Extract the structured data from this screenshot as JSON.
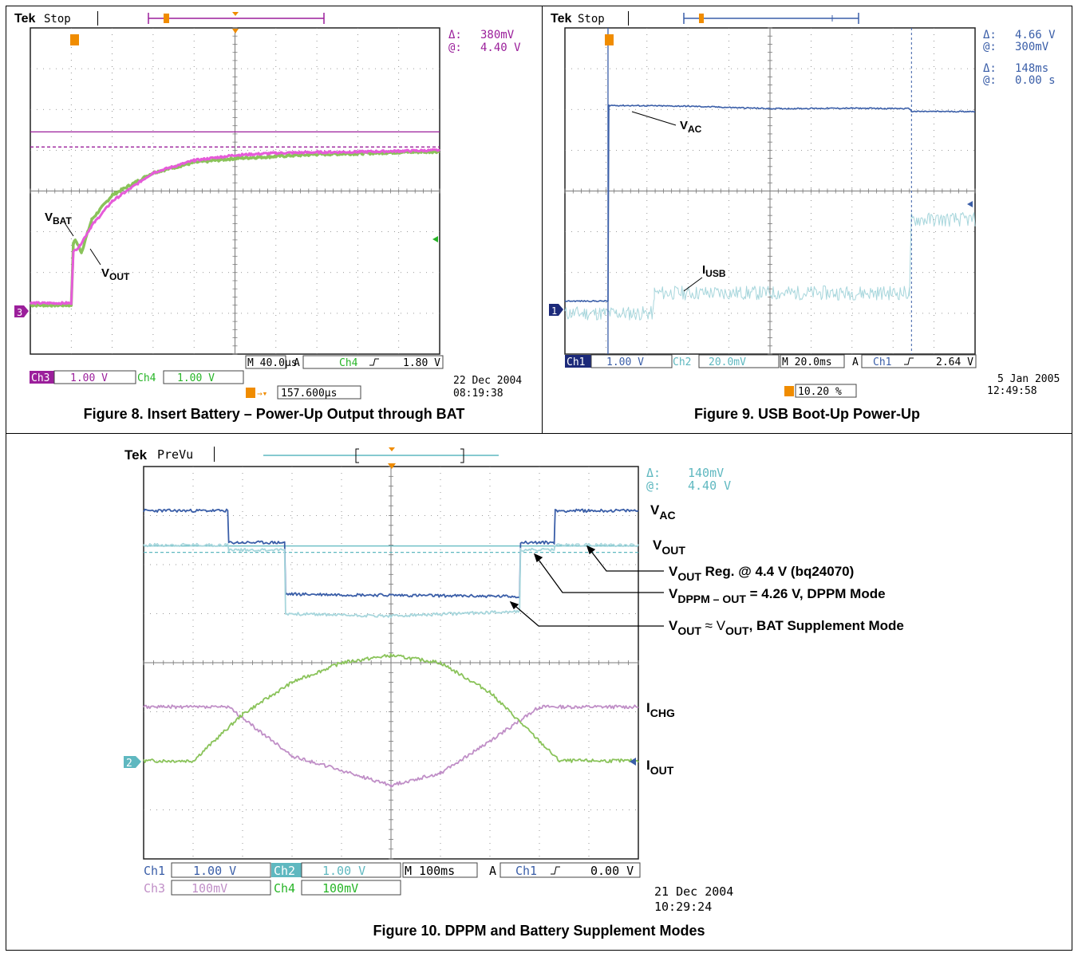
{
  "colors": {
    "ch1": "#3a5ea8",
    "ch2": "#5fb8c0",
    "ch2_trace": "#a7d6dc",
    "ch3": "#9b1f9b",
    "ch3_trace": "#e65bd9",
    "ch4": "#27b527",
    "ch4_trace": "#8ac35a",
    "ch3_fig10": "#c08fc7",
    "trigger": "#f08c00",
    "grid": "#7a7a7a"
  },
  "fig8": {
    "brand": "Tek",
    "mode": "Stop",
    "cursor": {
      "delta_label": "Δ:",
      "delta_value": "380mV",
      "at_label": "@:",
      "at_value": "4.40 V"
    },
    "channel_marker": "3",
    "timebase": "M 40.0µs",
    "trigger_label": "A",
    "trigger_channel": "Ch4",
    "trigger_level": "1.80 V",
    "ch3_label": "Ch3",
    "ch3_scale": "1.00 V",
    "ch4_label": "Ch4",
    "ch4_scale": "1.00 V",
    "trigger_pos": "157.600µs",
    "date": "22 Dec  2004",
    "time": "08:19:38",
    "label_vbat_main": "V",
    "label_vbat_sub": "BAT",
    "label_vout_main": "V",
    "label_vout_sub": "OUT",
    "caption": "Figure 8. Insert Battery – Power-Up Output through BAT"
  },
  "fig9": {
    "brand": "Tek",
    "mode": "Stop",
    "cursor_v": {
      "delta_label": "Δ:",
      "delta_value": "4.66 V",
      "at_label": "@:",
      "at_value": "300mV"
    },
    "cursor_t": {
      "delta_label": "Δ:",
      "delta_value": "148ms",
      "at_label": "@:",
      "at_value": "0.00 s"
    },
    "channel_marker": "1",
    "ch1_label": "Ch1",
    "ch1_scale": "1.00 V",
    "ch2_label": "Ch2",
    "ch2_scale": "20.0mV",
    "timebase": "M 20.0ms",
    "trigger_label": "A",
    "trigger_channel": "Ch1",
    "trigger_level": "2.64 V",
    "trigger_pos": "10.20 %",
    "date": "5 Jan  2005",
    "time": "12:49:58",
    "label_vac_main": "V",
    "label_vac_sub": "AC",
    "label_iusb_main": "I",
    "label_iusb_sub": "USB",
    "caption": "Figure 9. USB Boot-Up Power-Up"
  },
  "fig10": {
    "brand": "Tek",
    "mode": "PreVu",
    "cursor": {
      "delta_label": "Δ:",
      "delta_value": "140mV",
      "at_label": "@:",
      "at_value": "4.40 V"
    },
    "channel_marker": "2",
    "ch1_label": "Ch1",
    "ch1_scale": "1.00 V",
    "ch2_label": "Ch2",
    "ch2_scale": "1.00 V",
    "timebase": "M 100ms",
    "trigger_label": "A",
    "trigger_channel": "Ch1",
    "trigger_level": "0.00 V",
    "ch3_label": "Ch3",
    "ch3_scale": "100mV",
    "ch4_label": "Ch4",
    "ch4_scale": "100mV",
    "date": "21 Dec  2004",
    "time": "10:29:24",
    "label_vac_main": "V",
    "label_vac_sub": "AC",
    "label_vout_main": "V",
    "label_vout_sub": "OUT",
    "ann1_a": "V",
    "ann1_b": "OUT",
    "ann1_c": " Reg. @ 4.4 V (bq24070)",
    "ann2_a": "V",
    "ann2_b": "DPPM – OUT",
    "ann2_c": " = 4.26 V, DPPM Mode",
    "ann3_a": "V",
    "ann3_b": "OUT",
    "ann3_c": " ≈ ",
    "ann3_d": "V",
    "ann3_e": "OUT",
    "ann3_f": ",  BAT Supplement Mode",
    "label_ichg_main": "I",
    "label_ichg_sub": "CHG",
    "label_iout_main": "I",
    "label_iout_sub": "OUT",
    "caption": "Figure 10. DPPM and Battery Supplement Modes"
  },
  "chart_data": [
    {
      "type": "line",
      "title": "Figure 8. Insert Battery – Power-Up Output through BAT",
      "x_unit": "divisions (40.0µs/div)",
      "xlim": [
        0,
        10
      ],
      "ylim": [
        -4,
        4
      ],
      "grid": true,
      "series": [
        {
          "name": "VBAT",
          "x": [
            0,
            1,
            1.05,
            1.1,
            1.25,
            1.5,
            2,
            3,
            4,
            5,
            6,
            7,
            8,
            9,
            10
          ],
          "y": [
            -2.8,
            -2.8,
            -1.3,
            -1.2,
            -1.5,
            -0.7,
            -0.1,
            0.45,
            0.7,
            0.8,
            0.85,
            0.9,
            0.92,
            0.95,
            0.97
          ]
        },
        {
          "name": "VOUT",
          "x": [
            0,
            1,
            1.05,
            1.2,
            1.5,
            2,
            3,
            4,
            5,
            6,
            7,
            8,
            9,
            10
          ],
          "y": [
            -2.75,
            -2.75,
            -1.5,
            -1.35,
            -0.85,
            -0.25,
            0.45,
            0.75,
            0.88,
            0.93,
            0.95,
            0.96,
            0.98,
            1.0
          ]
        },
        {
          "name": "VOUT Reg. cursor",
          "x": [
            0,
            10
          ],
          "y": [
            1.45,
            1.45
          ]
        },
        {
          "name": "cursor dashed",
          "x": [
            0,
            10
          ],
          "y": [
            1.08,
            1.08
          ]
        }
      ]
    },
    {
      "type": "line",
      "title": "Figure 9. USB Boot-Up Power-Up",
      "x_unit": "divisions (20.0ms/div)",
      "xlim": [
        0,
        10
      ],
      "ylim": [
        -4,
        4
      ],
      "grid": true,
      "series": [
        {
          "name": "VAC",
          "x": [
            0,
            1.05,
            1.07,
            3,
            5,
            7,
            8.4,
            8.45,
            10
          ],
          "y": [
            -2.7,
            -2.7,
            2.1,
            2.08,
            2.02,
            2.03,
            2.02,
            1.95,
            1.95
          ]
        },
        {
          "name": "IUSB",
          "x": [
            0,
            2.15,
            2.18,
            8.4,
            8.45,
            10
          ],
          "y": [
            -3.0,
            -3.0,
            -2.5,
            -2.5,
            -0.7,
            -0.7
          ]
        }
      ]
    },
    {
      "type": "line",
      "title": "Figure 10. DPPM and Battery Supplement Modes",
      "x_unit": "divisions (100ms/div)",
      "xlim": [
        0,
        10
      ],
      "ylim": [
        -4,
        4
      ],
      "grid": true,
      "series": [
        {
          "name": "VAC",
          "x": [
            0,
            1.7,
            1.72,
            2.85,
            2.87,
            7.6,
            7.62,
            8.3,
            8.32,
            10
          ],
          "y": [
            3.1,
            3.1,
            2.45,
            2.45,
            1.4,
            1.35,
            2.45,
            2.45,
            3.1,
            3.1
          ]
        },
        {
          "name": "VOUT",
          "x": [
            0,
            1.7,
            1.72,
            2.85,
            2.87,
            5,
            7.6,
            7.62,
            8.3,
            8.32,
            10
          ],
          "y": [
            2.4,
            2.4,
            2.3,
            2.3,
            1.0,
            0.95,
            1.05,
            2.3,
            2.3,
            2.4,
            2.4
          ]
        },
        {
          "name": "VOUT Reg. @ 4.4 V (bq24070)",
          "x": [
            0,
            10
          ],
          "y": [
            2.38,
            2.38
          ]
        },
        {
          "name": "VDPPM – OUT = 4.26 V, DPPM Mode",
          "x": [
            0,
            10
          ],
          "y": [
            2.25,
            2.25
          ]
        },
        {
          "name": "ICHG",
          "x": [
            0,
            1.7,
            3,
            5,
            6,
            7,
            8,
            10
          ],
          "y": [
            -0.9,
            -0.9,
            -1.9,
            -2.5,
            -2.25,
            -1.6,
            -0.9,
            -0.9
          ]
        },
        {
          "name": "IOUT",
          "x": [
            0,
            1,
            2,
            3,
            4,
            5,
            6,
            7,
            8.4,
            10
          ],
          "y": [
            -2.0,
            -2.0,
            -1.05,
            -0.4,
            0.0,
            0.15,
            0.0,
            -0.6,
            -2.0,
            -2.0
          ]
        }
      ]
    }
  ]
}
